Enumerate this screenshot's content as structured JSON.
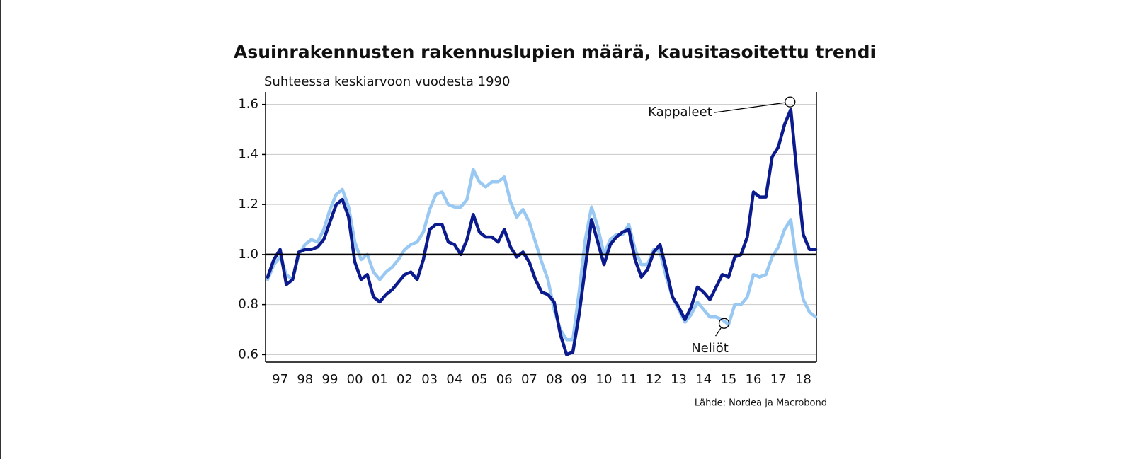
{
  "chart_data": {
    "type": "line",
    "title": "Asuinrakennusten rakennuslupien määrä, kausitasoitettu trendi",
    "subtitle": "Suhteessa keskiarvoon vuodesta 1990",
    "source": "Lähde: Nordea ja Macrobond",
    "x": [
      1997,
      1997.25,
      1997.5,
      1997.75,
      1998,
      1998.25,
      1998.5,
      1998.75,
      1999,
      1999.25,
      1999.5,
      1999.75,
      2000,
      2000.25,
      2000.5,
      2000.75,
      2001,
      2001.25,
      2001.5,
      2001.75,
      2002,
      2002.25,
      2002.5,
      2002.75,
      2003,
      2003.25,
      2003.5,
      2003.75,
      2004,
      2004.25,
      2004.5,
      2004.75,
      2005,
      2005.25,
      2005.5,
      2005.75,
      2006,
      2006.25,
      2006.5,
      2006.75,
      2007,
      2007.25,
      2007.5,
      2007.75,
      2008,
      2008.25,
      2008.5,
      2008.75,
      2009,
      2009.25,
      2009.5,
      2009.75,
      2010,
      2010.25,
      2010.5,
      2010.75,
      2011,
      2011.25,
      2011.5,
      2011.75,
      2012,
      2012.25,
      2012.5,
      2012.75,
      2013,
      2013.25,
      2013.5,
      2013.75,
      2014,
      2014.25,
      2014.5,
      2014.75,
      2015,
      2015.25,
      2015.5,
      2015.75,
      2016,
      2016.25,
      2016.5,
      2016.75,
      2017,
      2017.25,
      2017.5,
      2017.75,
      2018,
      2018.25,
      2018.5,
      2018.75,
      2019
    ],
    "series": [
      {
        "color": "#99c8f2",
        "values": [
          0.9,
          0.96,
          0.99,
          0.92,
          0.9,
          1.0,
          1.04,
          1.06,
          1.05,
          1.1,
          1.18,
          1.24,
          1.26,
          1.19,
          1.05,
          0.98,
          1.0,
          0.93,
          0.9,
          0.93,
          0.95,
          0.98,
          1.02,
          1.04,
          1.05,
          1.09,
          1.18,
          1.24,
          1.25,
          1.2,
          1.19,
          1.19,
          1.22,
          1.34,
          1.29,
          1.27,
          1.29,
          1.29,
          1.31,
          1.21,
          1.15,
          1.18,
          1.13,
          1.05,
          0.97,
          0.9,
          0.78,
          0.7,
          0.66,
          0.66,
          0.85,
          1.06,
          1.19,
          1.11,
          1.0,
          1.06,
          1.08,
          1.08,
          1.12,
          1.02,
          0.96,
          0.96,
          1.02,
          1.01,
          0.91,
          0.83,
          0.78,
          0.73,
          0.76,
          0.81,
          0.78,
          0.75,
          0.75,
          0.74,
          0.72,
          0.8,
          0.8,
          0.83,
          0.92,
          0.91,
          0.92,
          0.99,
          1.03,
          1.1,
          1.14,
          0.95,
          0.82,
          0.77,
          0.75
        ]
      },
      {
        "color": "#0b1a8c",
        "values": [
          0.91,
          0.98,
          1.02,
          0.88,
          0.9,
          1.01,
          1.02,
          1.02,
          1.03,
          1.06,
          1.13,
          1.2,
          1.22,
          1.15,
          0.97,
          0.9,
          0.92,
          0.83,
          0.81,
          0.84,
          0.86,
          0.89,
          0.92,
          0.93,
          0.9,
          0.98,
          1.1,
          1.12,
          1.12,
          1.05,
          1.04,
          1.0,
          1.06,
          1.16,
          1.09,
          1.07,
          1.07,
          1.05,
          1.1,
          1.03,
          0.99,
          1.01,
          0.97,
          0.9,
          0.85,
          0.84,
          0.81,
          0.68,
          0.6,
          0.61,
          0.76,
          0.95,
          1.14,
          1.05,
          0.96,
          1.04,
          1.07,
          1.09,
          1.1,
          0.98,
          0.91,
          0.94,
          1.01,
          1.04,
          0.94,
          0.83,
          0.79,
          0.74,
          0.79,
          0.87,
          0.85,
          0.82,
          0.87,
          0.92,
          0.91,
          0.99,
          1.0,
          1.07,
          1.25,
          1.23,
          1.23,
          1.39,
          1.43,
          1.52,
          1.58,
          1.32,
          1.08,
          1.02,
          1.02
        ]
      }
    ],
    "annotations": [
      {
        "text": "Kappaleet",
        "x": 2017.97,
        "y": 1.61
      },
      {
        "text": "Neliöt",
        "x": 2015.32,
        "y": 0.725
      }
    ],
    "reference_line": {
      "value": 1,
      "color": "#000000"
    },
    "xlim": [
      1997,
      2019
    ],
    "ylim": [
      0.57,
      1.65
    ],
    "xticks": [
      {
        "value": 1997.5,
        "label": "97"
      },
      {
        "value": 1998.5,
        "label": "98"
      },
      {
        "value": 1999.5,
        "label": "99"
      },
      {
        "value": 2000.5,
        "label": "00"
      },
      {
        "value": 2001.5,
        "label": "01"
      },
      {
        "value": 2002.5,
        "label": "02"
      },
      {
        "value": 2003.5,
        "label": "03"
      },
      {
        "value": 2004.5,
        "label": "04"
      },
      {
        "value": 2005.5,
        "label": "05"
      },
      {
        "value": 2006.5,
        "label": "06"
      },
      {
        "value": 2007.5,
        "label": "07"
      },
      {
        "value": 2008.5,
        "label": "08"
      },
      {
        "value": 2009.5,
        "label": "09"
      },
      {
        "value": 2010.5,
        "label": "10"
      },
      {
        "value": 2011.5,
        "label": "11"
      },
      {
        "value": 2012.5,
        "label": "12"
      },
      {
        "value": 2013.5,
        "label": "13"
      },
      {
        "value": 2014.5,
        "label": "14"
      },
      {
        "value": 2015.5,
        "label": "15"
      },
      {
        "value": 2016.5,
        "label": "16"
      },
      {
        "value": 2017.5,
        "label": "17"
      },
      {
        "value": 2018.5,
        "label": "18"
      }
    ],
    "yticks": [
      0.6,
      0.8,
      {
        "value": 1,
        "label": "1.0"
      },
      1.2,
      1.4,
      1.6
    ],
    "grid": true
  }
}
